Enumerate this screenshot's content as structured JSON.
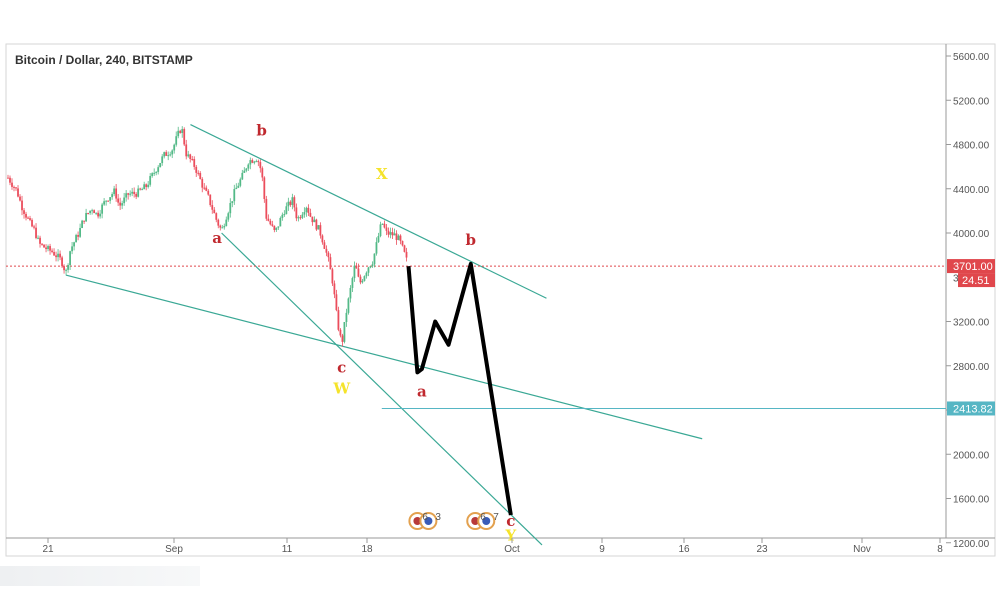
{
  "chart_data": {
    "type": "candlestick",
    "title": "Bitcoin / Dollar, 240, BITSTAMP",
    "x_ticks": [
      "21",
      "Sep",
      "11",
      "18",
      "Oct",
      "9",
      "16",
      "23",
      "Nov",
      "8"
    ],
    "y_ticks": [
      "5600.00",
      "5200.00",
      "4800.00",
      "4400.00",
      "4000.00",
      "3200.00",
      "2800.00",
      "2400.00",
      "2000.00",
      "1600.00",
      "1200.00"
    ],
    "ylim": [
      1200,
      5700
    ],
    "price_tags": {
      "current_price": "3701.00",
      "countdown": "24.51",
      "level_price": "2413.82",
      "hidden_tick": "3600.00"
    },
    "price_path": [
      [
        0,
        4500
      ],
      [
        2,
        4380
      ],
      [
        3,
        4250
      ],
      [
        5,
        4080
      ],
      [
        6,
        4020
      ],
      [
        7,
        3900
      ],
      [
        9,
        3850
      ],
      [
        10,
        3830
      ],
      [
        12,
        3750
      ],
      [
        13,
        3640
      ],
      [
        14,
        3850
      ],
      [
        16,
        4010
      ],
      [
        17,
        4130
      ],
      [
        19,
        4230
      ],
      [
        20,
        4160
      ],
      [
        22,
        4300
      ],
      [
        24,
        4380
      ],
      [
        25,
        4240
      ],
      [
        27,
        4350
      ],
      [
        29,
        4360
      ],
      [
        31,
        4420
      ],
      [
        33,
        4560
      ],
      [
        35,
        4700
      ],
      [
        37,
        4760
      ],
      [
        38,
        4870
      ],
      [
        39,
        4960
      ],
      [
        40,
        4720
      ],
      [
        42,
        4600
      ],
      [
        44,
        4400
      ],
      [
        45,
        4320
      ],
      [
        47,
        4100
      ],
      [
        48,
        4020
      ],
      [
        49,
        4150
      ],
      [
        51,
        4380
      ],
      [
        53,
        4540
      ],
      [
        54,
        4650
      ],
      [
        56,
        4680
      ],
      [
        57,
        4550
      ],
      [
        58,
        4150
      ],
      [
        60,
        4000
      ],
      [
        62,
        4200
      ],
      [
        64,
        4300
      ],
      [
        65,
        4120
      ],
      [
        67,
        4250
      ],
      [
        68,
        4150
      ],
      [
        70,
        4020
      ],
      [
        71,
        3900
      ],
      [
        72,
        3750
      ],
      [
        73,
        3550
      ],
      [
        74,
        3200
      ],
      [
        75,
        2990
      ],
      [
        76,
        3280
      ],
      [
        77,
        3500
      ],
      [
        78,
        3720
      ],
      [
        79,
        3540
      ],
      [
        80,
        3620
      ],
      [
        81,
        3700
      ],
      [
        82,
        3750
      ],
      [
        83,
        3930
      ],
      [
        84,
        4100
      ],
      [
        85,
        4000
      ],
      [
        87,
        3980
      ],
      [
        88,
        3930
      ],
      [
        89,
        3820
      ],
      [
        90,
        3700
      ]
    ],
    "wave_labels": [
      {
        "text": "a",
        "color": "#c0292f",
        "x_day": 47,
        "y": 3910
      },
      {
        "text": "b",
        "color": "#c0292f",
        "x_day": 57,
        "y": 4880
      },
      {
        "text": "c",
        "color": "#c0292f",
        "x_day": 75,
        "y": 2740
      },
      {
        "text": "W",
        "color": "#f5e32a",
        "x_day": 75,
        "y": 2550
      },
      {
        "text": "X",
        "color": "#f5e32a",
        "x_day": 84,
        "y": 4490
      },
      {
        "text": "a",
        "color": "#c0292f",
        "x_day": 93,
        "y": 2520
      },
      {
        "text": "b",
        "color": "#c0292f",
        "x_day": 104,
        "y": 3890
      },
      {
        "text": "c",
        "color": "#c0292f",
        "x_day": 113,
        "y": 1350
      },
      {
        "text": "Y",
        "color": "#f5e32a",
        "x_day": 113,
        "y": 1220
      }
    ],
    "projection_path": [
      [
        90,
        3700
      ],
      [
        92,
        2740
      ],
      [
        93,
        2770
      ],
      [
        96,
        3200
      ],
      [
        99,
        2990
      ],
      [
        104,
        3720
      ],
      [
        113,
        1450
      ]
    ],
    "trend_lines": [
      {
        "from": [
          41,
          4980
        ],
        "to": [
          121,
          3410
        ]
      },
      {
        "from": [
          13,
          3620
        ],
        "to": [
          156,
          2140
        ]
      },
      {
        "from": [
          48,
          4000
        ],
        "to": [
          120,
          1180
        ]
      }
    ],
    "current_price_value": 3701,
    "level_line_value": 2413.82,
    "level_line_start_day": 84,
    "event_icons": [
      {
        "label1": "6",
        "label2": "3",
        "x_day": 92
      },
      {
        "label1": "6",
        "label2": "7",
        "x_day": 105
      }
    ]
  }
}
